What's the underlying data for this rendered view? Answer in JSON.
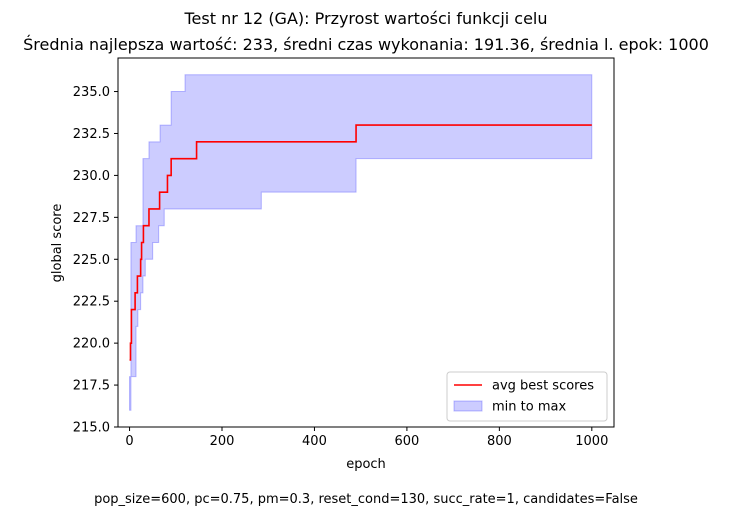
{
  "chart_data": {
    "type": "line",
    "title": "Test nr 12 (GA): Przyrost wartości funkcji celu",
    "subtitle": "Średnia najlepsza wartość: 233, średni czas wykonania: 191.36, średnia l. epok: 1000",
    "xlabel": "epoch",
    "ylabel": "global score",
    "xlim": [
      -25,
      1048
    ],
    "ylim": [
      215.0,
      237.0
    ],
    "x_ticks": [
      0,
      200,
      400,
      600,
      800,
      1000
    ],
    "y_ticks": [
      215.0,
      217.5,
      220.0,
      222.5,
      225.0,
      227.5,
      230.0,
      232.5,
      235.0
    ],
    "x_tick_labels": [
      "0",
      "200",
      "400",
      "600",
      "800",
      "1000"
    ],
    "y_tick_labels": [
      "215.0",
      "217.5",
      "220.0",
      "222.5",
      "225.0",
      "227.5",
      "230.0",
      "232.5",
      "235.0"
    ],
    "legend_position": "lower-right",
    "grid": false,
    "series": [
      {
        "name": "avg best scores",
        "kind": "step-line",
        "color": "#ff0000",
        "x": [
          0,
          2,
          4,
          12,
          17,
          24,
          26,
          30,
          37,
          42,
          52,
          65,
          82,
          90,
          145,
          490,
          1000
        ],
        "y": [
          219,
          220,
          222,
          223,
          224,
          225,
          226,
          227,
          227,
          228,
          228,
          229,
          230,
          231,
          232,
          233,
          233
        ]
      },
      {
        "name": "min to max",
        "kind": "band",
        "color": "#0000ff",
        "fill_opacity": 0.2,
        "x": [
          0,
          3,
          14,
          18,
          24,
          29,
          34,
          42,
          50,
          56,
          63,
          66,
          75,
          90,
          95,
          115,
          120,
          150,
          200,
          285,
          330,
          390,
          490,
          1000
        ],
        "y_min": [
          216,
          218,
          221,
          222,
          223,
          224,
          225,
          225,
          226,
          226,
          227,
          227,
          228,
          228,
          228,
          228,
          228,
          228,
          228,
          229,
          229,
          229,
          231,
          231
        ],
        "y_max": [
          218,
          226,
          227,
          227,
          227,
          231,
          231,
          232,
          232,
          232,
          232,
          233,
          233,
          235,
          235,
          235,
          236,
          236,
          236,
          236,
          236,
          236,
          236,
          236
        ]
      }
    ],
    "footer": "pop_size=600, pc=0.75, pm=0.3, reset_cond=130, succ_rate=1, candidates=False"
  }
}
